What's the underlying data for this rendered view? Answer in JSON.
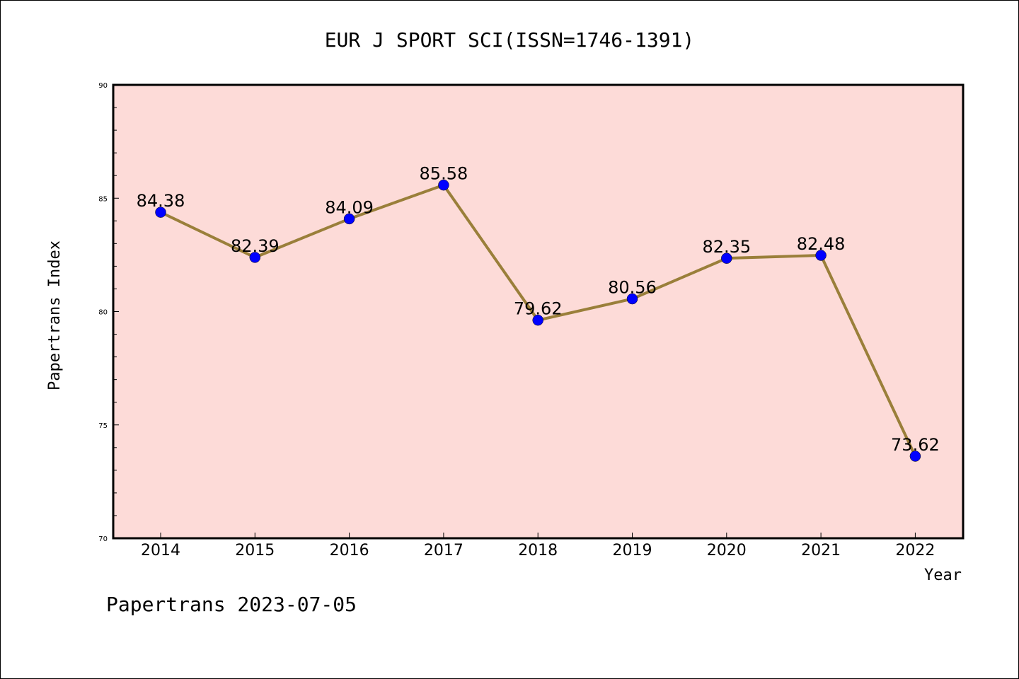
{
  "chart_data": {
    "type": "line",
    "title": "EUR J SPORT SCI(ISSN=1746-1391)",
    "xlabel": "Year",
    "ylabel": "Papertrans Index",
    "x": [
      "2014",
      "2015",
      "2016",
      "2017",
      "2018",
      "2019",
      "2020",
      "2021",
      "2022"
    ],
    "values": [
      84.38,
      82.39,
      84.09,
      85.58,
      79.62,
      80.56,
      82.35,
      82.48,
      73.62
    ],
    "data_labels": [
      "84.38",
      "82.39",
      "84.09",
      "85.58",
      "79.62",
      "80.56",
      "82.35",
      "82.48",
      "73.62"
    ],
    "ylim": [
      70,
      90
    ],
    "yticks": [
      70,
      75,
      80,
      85,
      90
    ],
    "grid": false,
    "legend": "none",
    "colors": {
      "plot_background": "#fddbd8",
      "line": "#9a7f3a",
      "marker": "#0000ff"
    }
  },
  "footer": "Papertrans 2023-07-05"
}
